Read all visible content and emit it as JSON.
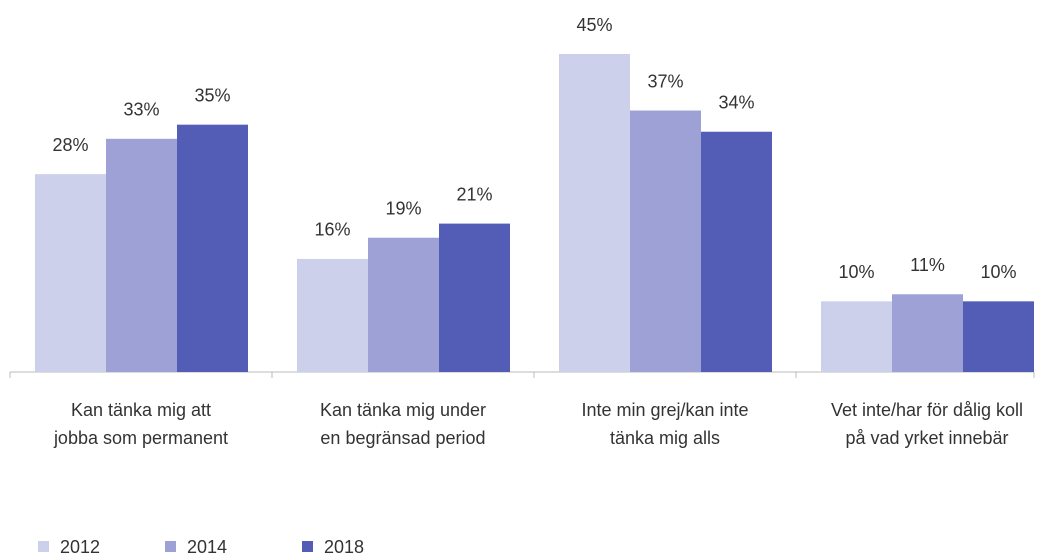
{
  "chart_data": {
    "type": "bar",
    "categories": [
      "Kan tänka mig att\njobba som permanent",
      "Kan tänka mig under\nen begränsad period",
      "Inte min grej/kan inte\ntänka mig alls",
      "Vet inte/har för dålig koll\npå vad yrket innebär"
    ],
    "series": [
      {
        "name": "2012",
        "color": "#cdd0eb",
        "values": [
          28,
          16,
          45,
          10
        ],
        "value_labels": [
          "28%",
          "16%",
          "45%",
          "10%"
        ]
      },
      {
        "name": "2014",
        "color": "#9da1d6",
        "values": [
          33,
          19,
          37,
          11
        ],
        "value_labels": [
          "33%",
          "19%",
          "37%",
          "11%"
        ]
      },
      {
        "name": "2018",
        "color": "#535db5",
        "values": [
          35,
          21,
          34,
          10
        ],
        "value_labels": [
          "35%",
          "21%",
          "34%",
          "10%"
        ]
      }
    ],
    "legend": "bottom-left"
  }
}
